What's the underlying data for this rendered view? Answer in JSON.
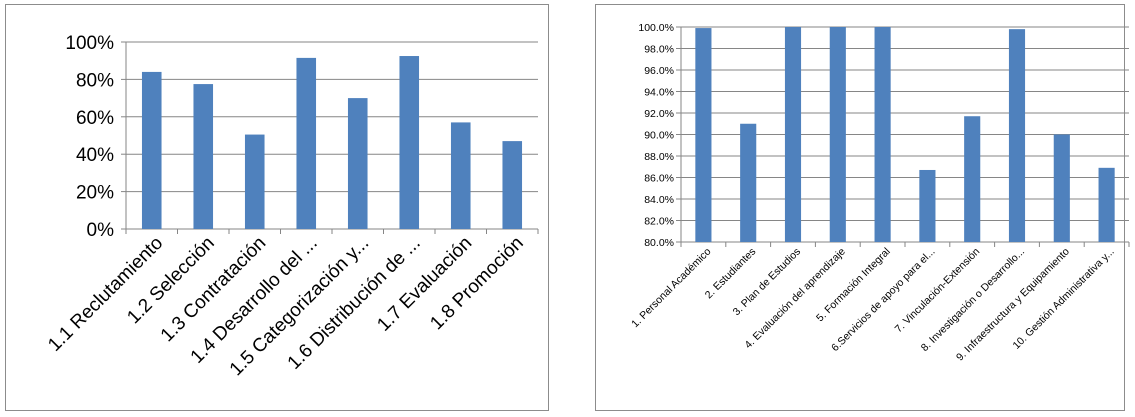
{
  "chart_data": [
    {
      "type": "bar",
      "title": "",
      "xlabel": "",
      "ylabel": "",
      "grid": true,
      "legend": "none",
      "bar_color": "#4f81bd",
      "ylim": [
        0,
        100
      ],
      "y_ticks": [
        0,
        20,
        40,
        60,
        80,
        100
      ],
      "y_tick_labels": [
        "0%",
        "20%",
        "40%",
        "60%",
        "80%",
        "100%"
      ],
      "categories": [
        "1.1 Reclutamiento",
        "1.2 Selección",
        "1.3 Contratación",
        "1.4 Desarrollo del ...",
        "1.5 Categorización y...",
        "1.6 Distribución de ...",
        "1.7 Evaluación",
        "1.8 Promoción"
      ],
      "values": [
        84,
        77.5,
        50.5,
        91.5,
        70,
        92.5,
        57,
        47
      ]
    },
    {
      "type": "bar",
      "title": "",
      "xlabel": "",
      "ylabel": "",
      "grid": true,
      "legend": "none",
      "bar_color": "#4f81bd",
      "ylim": [
        80,
        100
      ],
      "y_ticks": [
        80,
        82,
        84,
        86,
        88,
        90,
        92,
        94,
        96,
        98,
        100
      ],
      "y_tick_labels": [
        "80.0%",
        "82.0%",
        "84.0%",
        "86.0%",
        "88.0%",
        "90.0%",
        "92.0%",
        "94.0%",
        "96.0%",
        "98.0%",
        "100.0%"
      ],
      "categories": [
        "1. Personal Académico",
        "2. Estudiantes",
        "3. Plan de Estudios",
        "4. Evaluación del aprendizaje",
        "5. Formación Integral",
        "6.Servicios de apoyo para el...",
        "7. Vinculación-Extensión",
        "8. Investigación o Desarrollo...",
        "9. Infraestructura y Equipamiento",
        "10. Gestión Administrativa y..."
      ],
      "values": [
        99.9,
        91.0,
        100.0,
        100.0,
        100.0,
        86.7,
        91.7,
        99.8,
        90.0,
        86.9
      ]
    }
  ]
}
